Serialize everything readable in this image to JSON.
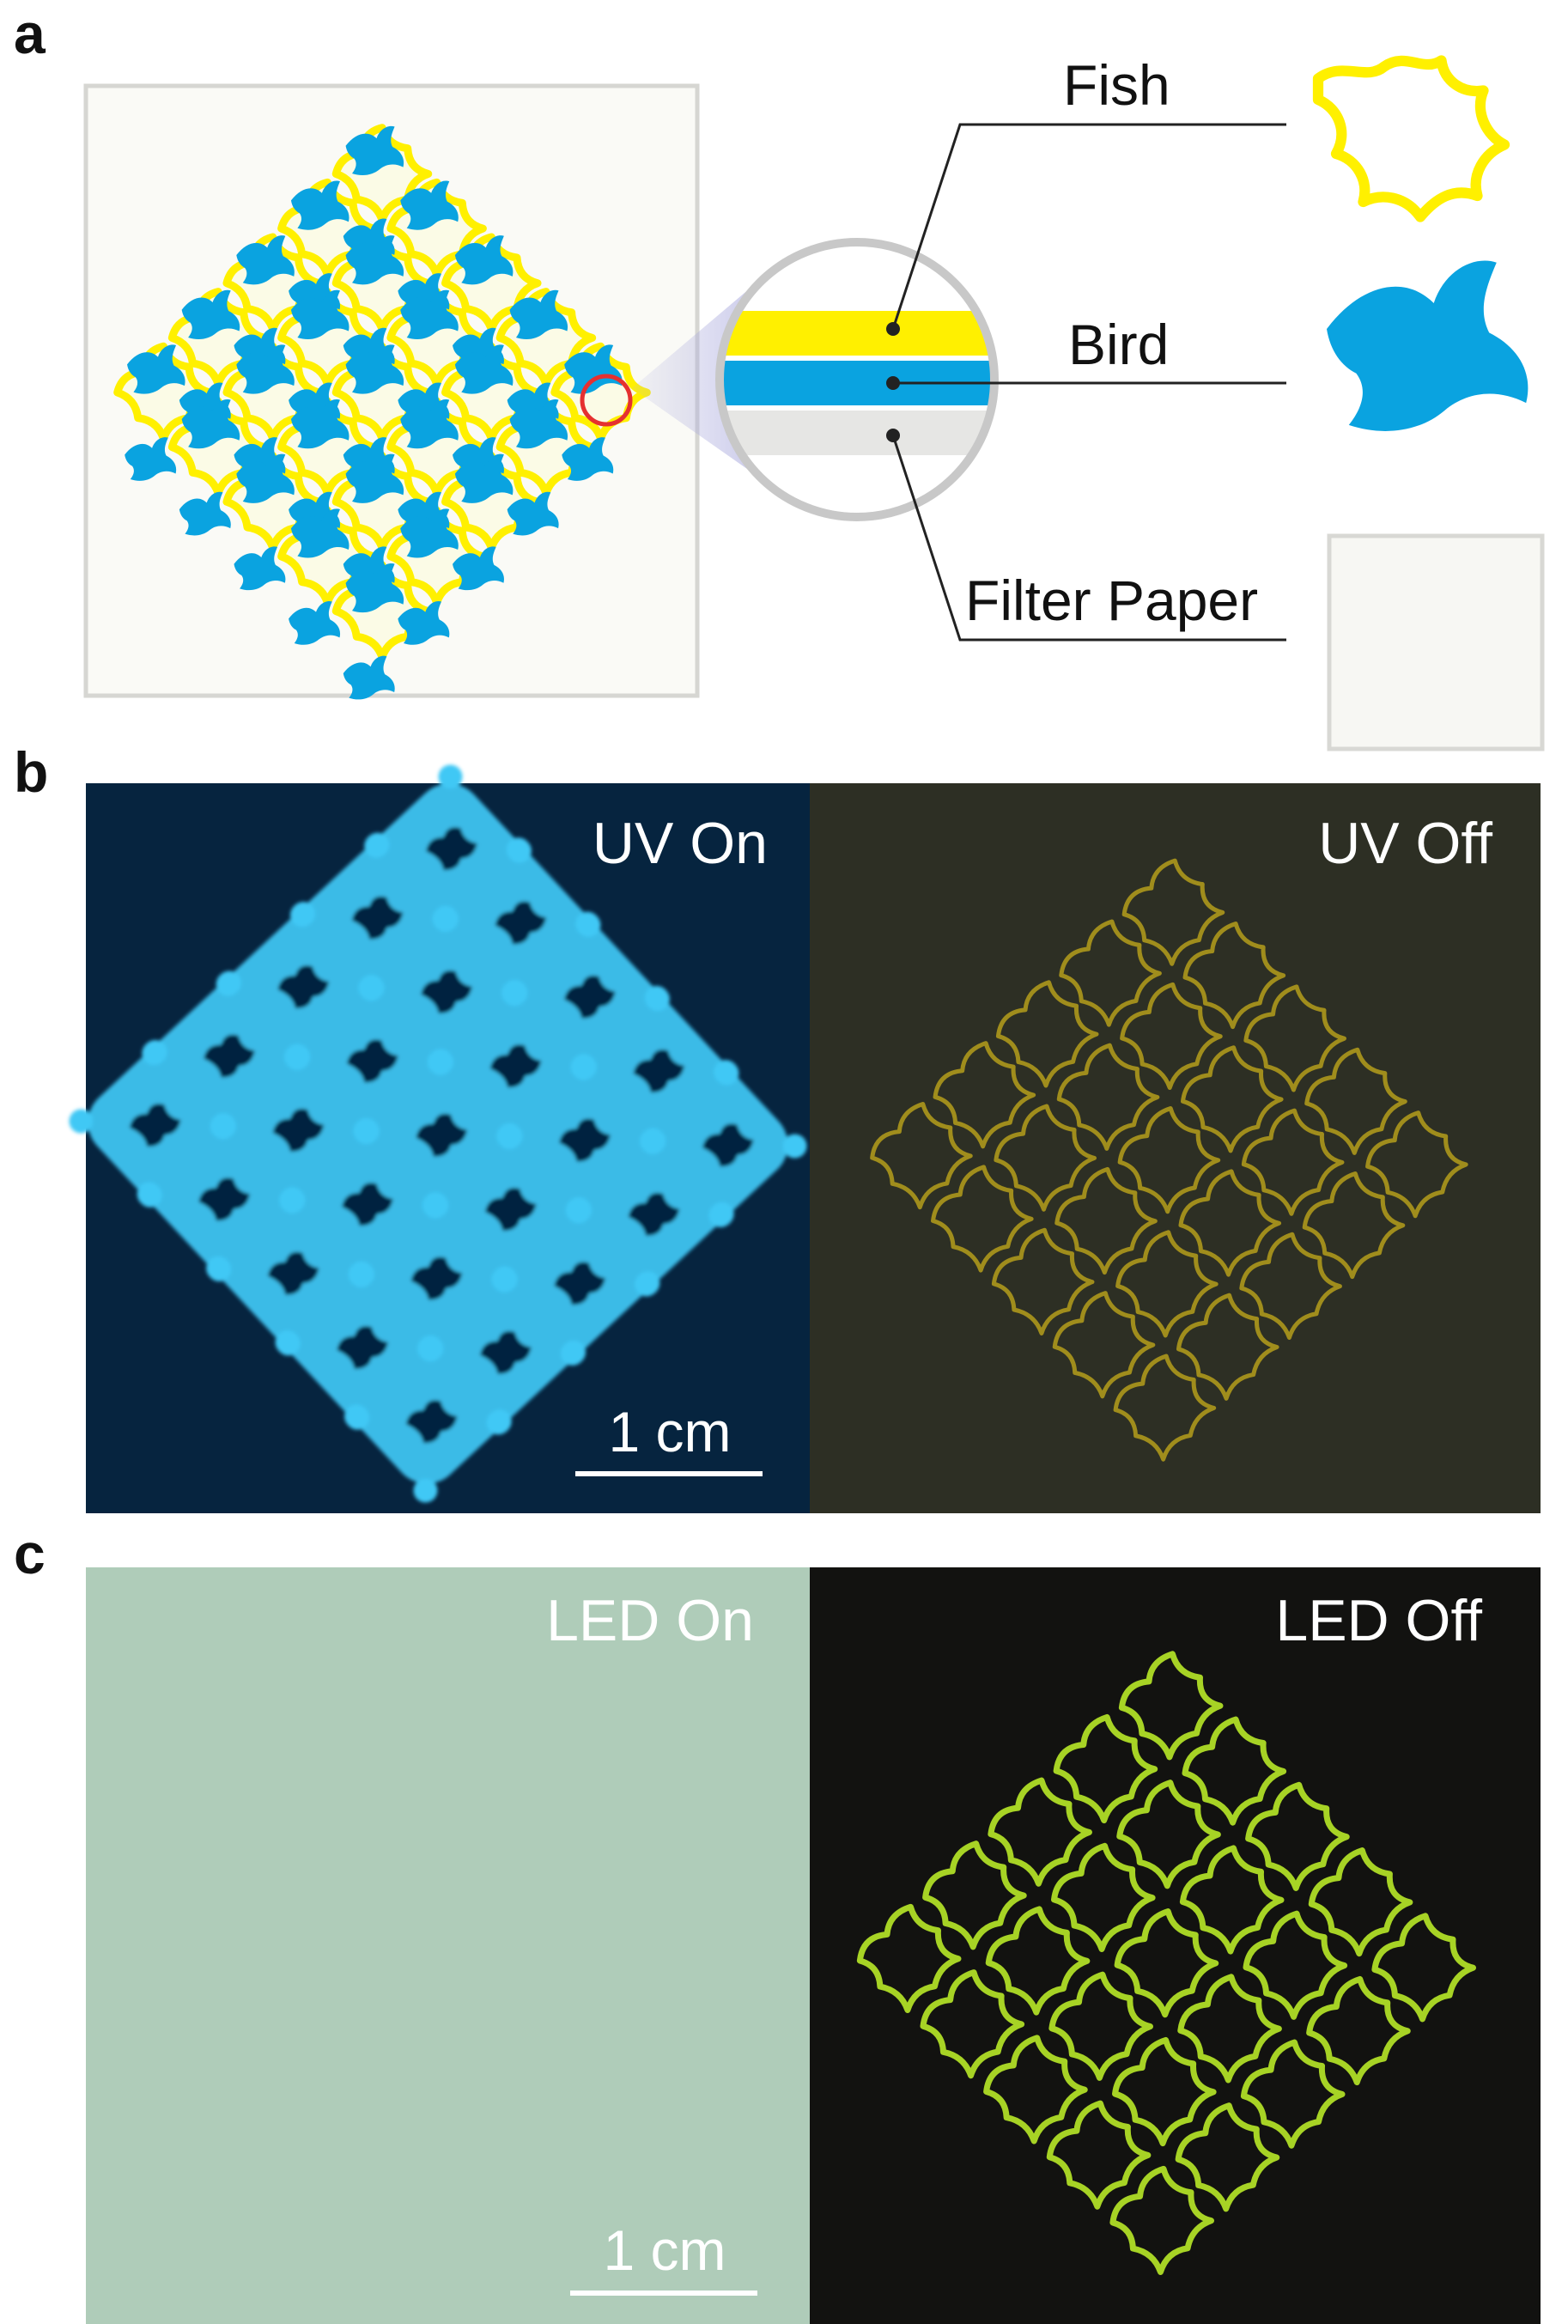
{
  "panels": {
    "a": {
      "letter": "a",
      "layers": [
        {
          "label": "Fish"
        },
        {
          "label": "Bird"
        },
        {
          "label": "Filter Paper"
        }
      ]
    },
    "b": {
      "letter": "b",
      "left_label": "UV On",
      "right_label": "UV Off",
      "scale_bar": "1 cm"
    },
    "c": {
      "letter": "c",
      "left_label": "LED On",
      "right_label": "LED Off",
      "scale_bar": "1 cm"
    }
  },
  "colors": {
    "fish_yellow": "#fff000",
    "bird_blue": "#0aa3e0",
    "paper_gray": "#e6e6e4",
    "highlight_red": "#e53030",
    "uv_on_background": "#06243f",
    "uv_on_glow": "#3fc8f5",
    "uv_off_background": "#2d2f24",
    "uv_off_glow": "#a08d1c",
    "led_on_background": "#a8c7b3",
    "led_off_background": "#121210",
    "led_off_glow": "#a7d325"
  }
}
